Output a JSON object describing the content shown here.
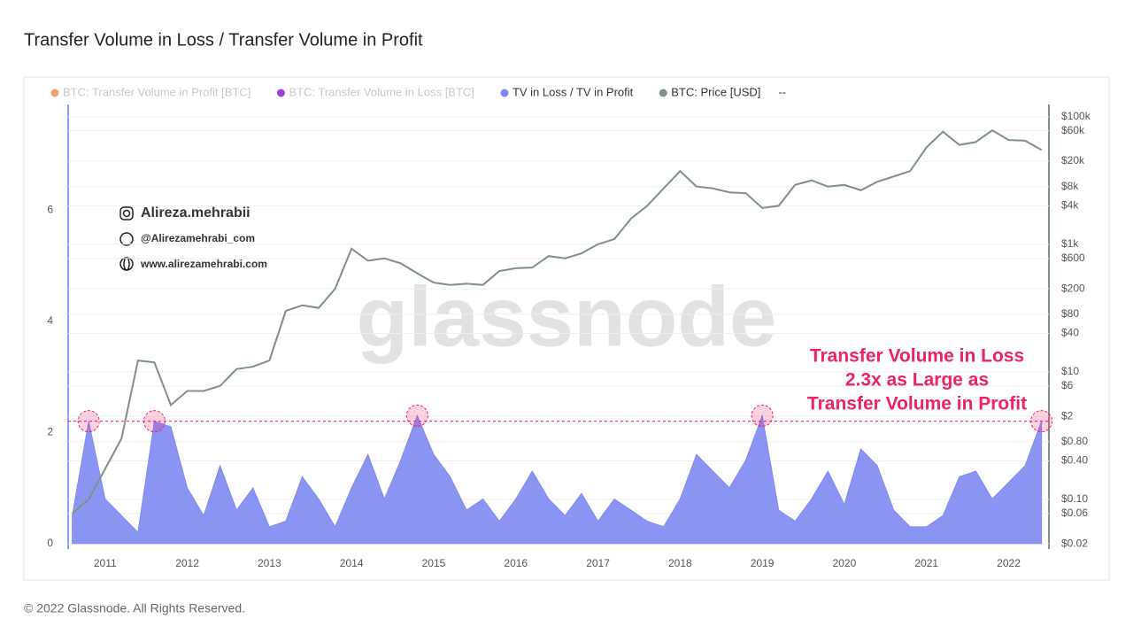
{
  "chart_data": {
    "type": "area-line",
    "title": "Transfer Volume in Loss / Transfer Volume in Profit",
    "legend_inactive": [
      {
        "name": "BTC: Transfer Volume in Profit [BTC]",
        "color": "#f0a070"
      },
      {
        "name": "BTC: Transfer Volume in Loss [BTC]",
        "color": "#9b40e0"
      }
    ],
    "legend_extra": "--",
    "x": [
      2010.6,
      2010.8,
      2011.0,
      2011.2,
      2011.4,
      2011.6,
      2011.8,
      2012.0,
      2012.2,
      2012.4,
      2012.6,
      2012.8,
      2013.0,
      2013.2,
      2013.4,
      2013.6,
      2013.8,
      2014.0,
      2014.2,
      2014.4,
      2014.6,
      2014.8,
      2015.0,
      2015.2,
      2015.4,
      2015.6,
      2015.8,
      2016.0,
      2016.2,
      2016.4,
      2016.6,
      2016.8,
      2017.0,
      2017.2,
      2017.4,
      2017.6,
      2017.8,
      2018.0,
      2018.2,
      2018.4,
      2018.6,
      2018.8,
      2019.0,
      2019.2,
      2019.4,
      2019.6,
      2019.8,
      2020.0,
      2020.2,
      2020.4,
      2020.6,
      2020.8,
      2021.0,
      2021.2,
      2021.4,
      2021.6,
      2021.8,
      2022.0,
      2022.2,
      2022.4
    ],
    "series": [
      {
        "name": "TV in Loss / TV in Profit",
        "color": "#8088f0",
        "values": [
          0.5,
          2.2,
          0.8,
          0.5,
          0.2,
          2.2,
          2.1,
          1.0,
          0.5,
          1.4,
          0.6,
          1.0,
          0.3,
          0.4,
          1.2,
          0.8,
          0.3,
          1.0,
          1.6,
          0.8,
          1.5,
          2.3,
          1.6,
          1.2,
          0.6,
          0.8,
          0.4,
          0.8,
          1.3,
          0.8,
          0.5,
          0.9,
          0.4,
          0.8,
          0.6,
          0.4,
          0.3,
          0.8,
          1.6,
          1.3,
          1.0,
          1.5,
          2.3,
          0.6,
          0.4,
          0.8,
          1.3,
          0.7,
          1.7,
          1.4,
          0.6,
          0.3,
          0.3,
          0.5,
          1.2,
          1.3,
          0.8,
          1.1,
          1.4,
          2.2
        ]
      },
      {
        "name": "BTC: Price [USD]",
        "color": "#7f8f8b",
        "axis": "y2",
        "values": [
          0.06,
          0.1,
          0.3,
          0.9,
          15,
          14,
          3,
          5,
          5,
          6,
          11,
          12,
          15,
          90,
          110,
          100,
          200,
          850,
          550,
          600,
          500,
          350,
          250,
          230,
          240,
          230,
          380,
          420,
          430,
          650,
          600,
          720,
          1000,
          1200,
          2500,
          4000,
          7500,
          14000,
          8000,
          7500,
          6500,
          6300,
          3700,
          4000,
          8500,
          10000,
          8000,
          8500,
          7000,
          9500,
          11500,
          14000,
          33000,
          58000,
          36000,
          40000,
          61000,
          43000,
          42000,
          30000
        ]
      }
    ],
    "xlim": [
      2010.55,
      2022.49
    ],
    "xticks": [
      2011,
      2012,
      2013,
      2014,
      2015,
      2016,
      2017,
      2018,
      2019,
      2020,
      2021,
      2022
    ],
    "ylim": [
      -0.1,
      7.9
    ],
    "yticks": [
      0,
      2,
      4,
      6
    ],
    "y2lim": [
      0.0166,
      155000
    ],
    "y2log": true,
    "y2ticks": [
      {
        "value": 100000,
        "label": "$100k"
      },
      {
        "value": 60000,
        "label": "$60k"
      },
      {
        "value": 20000,
        "label": "$20k"
      },
      {
        "value": 8000,
        "label": "$8k"
      },
      {
        "value": 4000,
        "label": "$4k"
      },
      {
        "value": 1000,
        "label": "$1k"
      },
      {
        "value": 600,
        "label": "$600"
      },
      {
        "value": 200,
        "label": "$200"
      },
      {
        "value": 80,
        "label": "$80"
      },
      {
        "value": 40,
        "label": "$40"
      },
      {
        "value": 10,
        "label": "$10"
      },
      {
        "value": 6,
        "label": "$6"
      },
      {
        "value": 2,
        "label": "$2"
      },
      {
        "value": 0.8,
        "label": "$0.80"
      },
      {
        "value": 0.4,
        "label": "$0.40"
      },
      {
        "value": 0.1,
        "label": "$0.10"
      },
      {
        "value": 0.06,
        "label": "$0.06"
      },
      {
        "value": 0.02,
        "label": "$0.02"
      }
    ],
    "grid": true,
    "threshold": 2.2,
    "annotation": [
      "Transfer Volume in Loss",
      "2.3x as Large as",
      "Transfer Volume in Profit"
    ],
    "annotation_color": "#f0206a",
    "watermark": "glassnode",
    "credits": [
      "Alireza.mehrabii",
      "@Alirezamehrabi_com",
      "www.alirezamehrabi.com"
    ],
    "footer": "© 2022 Glassnode. All Rights Reserved."
  }
}
